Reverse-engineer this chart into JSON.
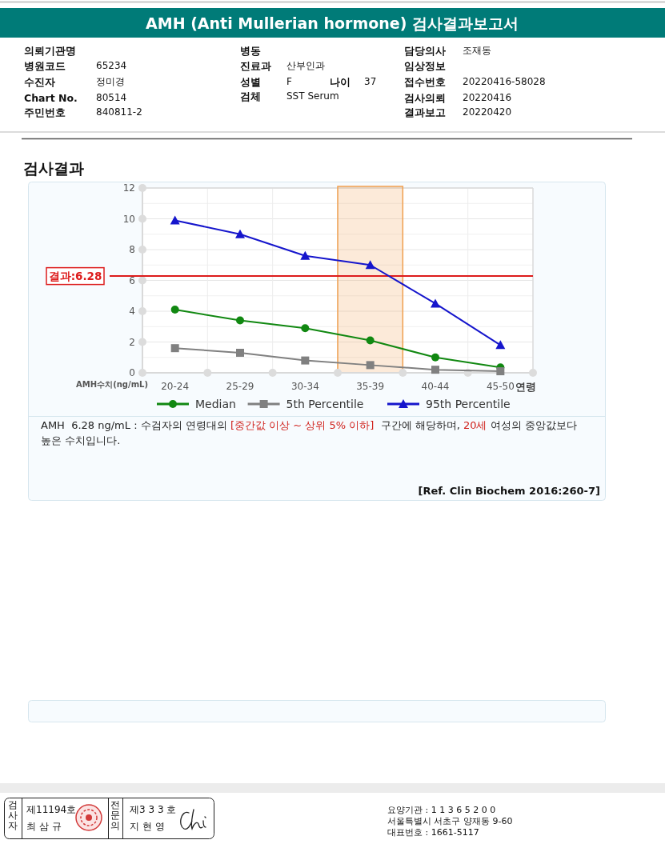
{
  "chart_data": {
    "type": "line",
    "title": "AMH (Anti Mullerian hormone) 검사결과보고서",
    "subtitle": "검사결과",
    "xlabel": "연령",
    "ylabel": "AMH수치(ng/mL)",
    "categories": [
      "20-24",
      "25-29",
      "30-34",
      "35-39",
      "40-44",
      "45-50"
    ],
    "series": [
      {
        "name": "Median",
        "color": "#118811",
        "marker": "circle",
        "values": [
          4.1,
          3.4,
          2.9,
          2.1,
          1.0,
          0.35
        ]
      },
      {
        "name": "5th Percentile",
        "color": "#808080",
        "marker": "square",
        "values": [
          1.6,
          1.3,
          0.8,
          0.5,
          0.2,
          0.1
        ]
      },
      {
        "name": "95th Percentile",
        "color": "#1515cc",
        "marker": "triangle",
        "values": [
          9.9,
          9.0,
          7.6,
          7.0,
          4.5,
          1.8
        ]
      }
    ],
    "ylim": [
      0,
      12
    ],
    "yticks": [
      0,
      {
        "value": 1,
        "label": null
      },
      2,
      {
        "value": 3,
        "label": null
      },
      4,
      {
        "value": 5,
        "label": null
      },
      6,
      {
        "value": 7,
        "label": null
      },
      8,
      {
        "value": 9,
        "label": null
      },
      10,
      {
        "value": 11,
        "label": null
      },
      12
    ],
    "grid": true,
    "legend": "bottom",
    "ref_lines": [
      {
        "axis": "y",
        "value": 6.28,
        "label": "결과:6.28",
        "color": "#dd1c1c"
      }
    ],
    "bands": [
      {
        "axis": "x",
        "from": "35-39",
        "to": "35-39",
        "color": "#f0a050"
      }
    ],
    "annotations": [
      "의뢰기관명",
      "병동",
      "담당의사",
      "조재동",
      "병원코드",
      "65234",
      "진료과",
      "산부인과",
      "임상정보",
      "수진자",
      "정미경",
      "성별",
      "F",
      "나이",
      "37",
      "접수번호",
      "20220416-58028",
      "Chart No.",
      "80514",
      "검체",
      "SST Serum",
      "검사의뢰",
      "20220416",
      "주민번호",
      "840811-2",
      "결과보고",
      "20220420",
      "AMH  6.28 ng/mL : 수검자의 연령대의 ",
      "[중간값 이상 ~ 상위 5% 이하]",
      "  구간에 해당하며, ",
      "20세",
      " 여성의 중앙값보다 높은 수치입니다.",
      "[Ref. Clin Biochem 2016:260-7]",
      "검사자",
      "제11194호",
      "최 삼 규",
      "전문의",
      "제3 3 3 호",
      "지 현 영",
      "요양기관 : 1 1 3 6 5 2 0 0",
      "서울특별시 서초구 양재동 9-60",
      "대표번호 : 1661-5117"
    ]
  }
}
